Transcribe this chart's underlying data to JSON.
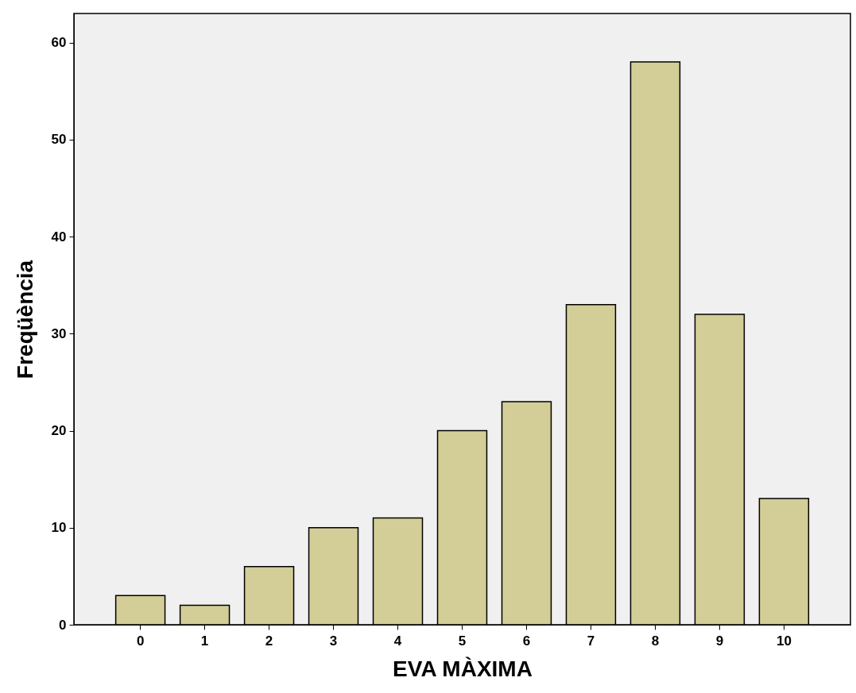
{
  "chart_data": {
    "type": "bar",
    "xlabel": "EVA MÀXIMA",
    "ylabel": "Freqüència",
    "categories": [
      "0",
      "1",
      "2",
      "3",
      "4",
      "5",
      "6",
      "7",
      "8",
      "9",
      "10"
    ],
    "values": [
      3,
      2,
      6,
      10,
      11,
      20,
      23,
      33,
      58,
      32,
      13
    ],
    "color": "#d3ce97",
    "ylim": [
      0,
      63
    ],
    "yticks": [
      0,
      10,
      20,
      30,
      40,
      50,
      60
    ],
    "grid": false
  }
}
